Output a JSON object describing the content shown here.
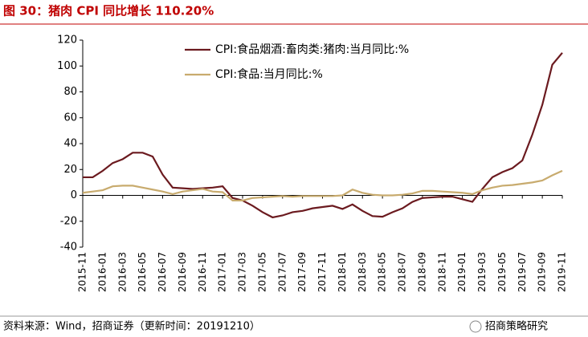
{
  "title": "图 30：猪肉 CPI 同比增长 110.20%",
  "source": "资料来源：Wind，招商证券（更新时间：20191210）",
  "watermark": "招商策略研究",
  "chart_data": {
    "type": "line",
    "categories": [
      "2015-11",
      null,
      "2016-01",
      null,
      "2016-03",
      null,
      "2016-05",
      null,
      "2016-07",
      null,
      "2016-09",
      null,
      "2016-11",
      null,
      "2017-01",
      null,
      "2017-03",
      null,
      "2017-05",
      null,
      "2017-07",
      null,
      "2017-09",
      null,
      "2017-11",
      null,
      "2018-01",
      null,
      "2018-03",
      null,
      "2018-05",
      null,
      "2018-07",
      null,
      "2018-09",
      null,
      "2018-11",
      null,
      "2019-01",
      null,
      "2019-03",
      null,
      "2019-05",
      null,
      "2019-07",
      null,
      "2019-09",
      null,
      "2019-11"
    ],
    "series": [
      {
        "name": "CPI:食品烟酒:畜肉类:猪肉:当月同比:%",
        "color": "#6b1a1f",
        "values": [
          14,
          14,
          19,
          25,
          28,
          33,
          33,
          30,
          16,
          6,
          5.5,
          5,
          5.5,
          6,
          7,
          -2,
          -4,
          -8,
          -13,
          -17,
          -15.5,
          -13,
          -12,
          -10,
          -9,
          -8,
          -10.5,
          -7,
          -12,
          -16,
          -16.5,
          -13,
          -10,
          -5,
          -2,
          -1.5,
          -1,
          -1,
          -3,
          -5,
          5,
          14,
          18,
          21,
          27,
          47,
          70,
          101,
          110.2
        ]
      },
      {
        "name": "CPI:食品:当月同比:%",
        "color": "#c8ab6e",
        "values": [
          2,
          3,
          4,
          7,
          7.5,
          7.5,
          6,
          4.5,
          3,
          1,
          3,
          4,
          5,
          3,
          2.5,
          -4,
          -4,
          -2,
          -1.5,
          -1,
          -0.5,
          -1,
          -0.5,
          -0.5,
          -0.5,
          -0.5,
          0,
          4.5,
          2,
          0.5,
          0,
          0,
          0.5,
          1.5,
          3.5,
          3.5,
          3,
          2.5,
          2,
          1,
          4,
          6,
          7.5,
          8,
          9,
          10,
          11.5,
          15.5,
          19
        ]
      }
    ],
    "ylim": [
      -40,
      120
    ],
    "yticks": [
      -40,
      -20,
      0,
      20,
      40,
      60,
      80,
      100,
      120
    ],
    "grid": false,
    "legend": "top-left"
  }
}
